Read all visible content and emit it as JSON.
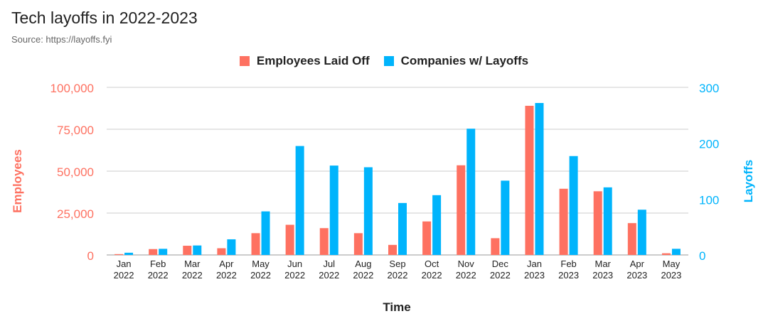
{
  "title": "Tech layoffs in 2022-2023",
  "subtitle": "Source: https://layoffs.fyi",
  "colors": {
    "employees": "#fe7161",
    "companies": "#00b4fc",
    "grid": "#cccccc",
    "text": "#222222"
  },
  "chart_data": {
    "type": "bar",
    "xlabel": "Time",
    "ylabel_left": "Employees",
    "ylabel_right": "Layoffs",
    "ylim_left": [
      0,
      100000
    ],
    "ylim_right": [
      0,
      300
    ],
    "yticks_left": [
      "0",
      "25,000",
      "50,000",
      "75,000",
      "100,000"
    ],
    "yticks_right": [
      "0",
      "100",
      "200",
      "300"
    ],
    "legend_position": "top-center",
    "grid": true,
    "categories": [
      [
        "Jan",
        "2022"
      ],
      [
        "Feb",
        "2022"
      ],
      [
        "Mar",
        "2022"
      ],
      [
        "Apr",
        "2022"
      ],
      [
        "May",
        "2022"
      ],
      [
        "Jun",
        "2022"
      ],
      [
        "Jul",
        "2022"
      ],
      [
        "Aug",
        "2022"
      ],
      [
        "Sep",
        "2022"
      ],
      [
        "Oct",
        "2022"
      ],
      [
        "Nov",
        "2022"
      ],
      [
        "Dec",
        "2022"
      ],
      [
        "Jan",
        "2023"
      ],
      [
        "Feb",
        "2023"
      ],
      [
        "Mar",
        "2023"
      ],
      [
        "Apr",
        "2023"
      ],
      [
        "May",
        "2023"
      ]
    ],
    "series": [
      {
        "name": "Employees Laid Off",
        "axis": "left",
        "values": [
          500,
          3500,
          5500,
          4000,
          13000,
          18000,
          16000,
          13000,
          6000,
          20000,
          53500,
          10000,
          89000,
          39500,
          38000,
          19000,
          1000
        ]
      },
      {
        "name": "Companies w/ Layoffs",
        "axis": "right",
        "values": [
          4,
          11,
          17,
          28,
          78,
          195,
          160,
          157,
          93,
          107,
          226,
          133,
          272,
          177,
          121,
          81,
          11
        ]
      }
    ]
  }
}
